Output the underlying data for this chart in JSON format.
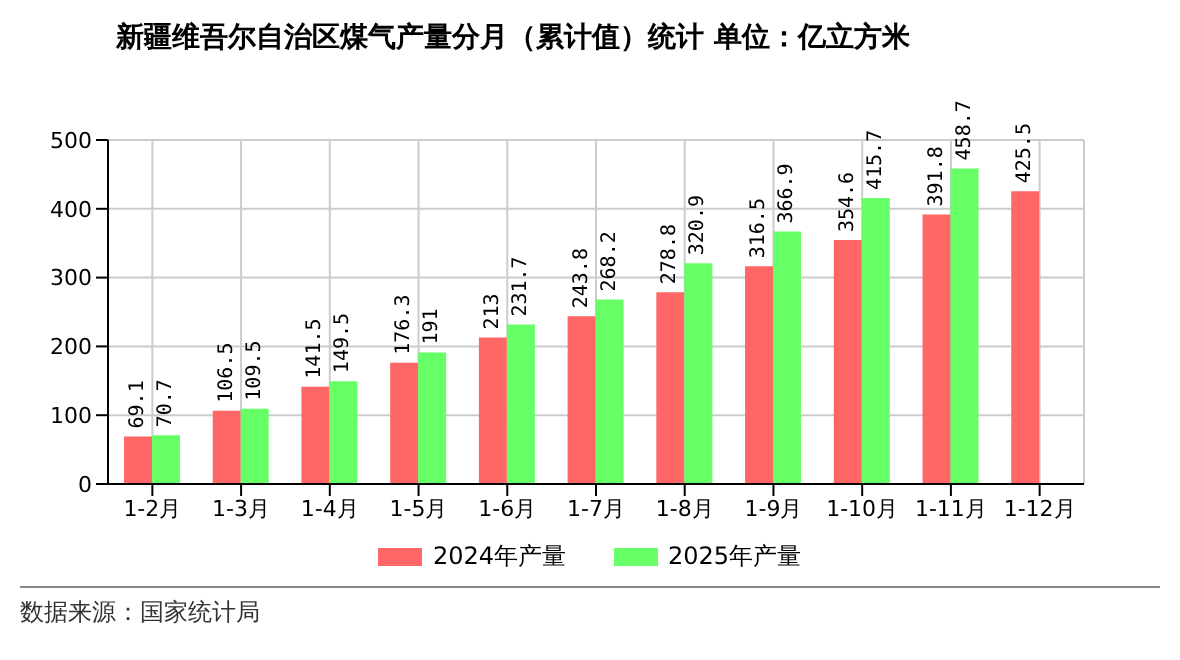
{
  "chart_data": {
    "type": "bar",
    "title": "新疆维吾尔自治区煤气产量分月（累计值）统计  单位：亿立方米",
    "categories": [
      "1-2月",
      "1-3月",
      "1-4月",
      "1-5月",
      "1-6月",
      "1-7月",
      "1-8月",
      "1-9月",
      "1-10月",
      "1-11月",
      "1-12月"
    ],
    "series": [
      {
        "name": "2024年产量",
        "color": "#ff6666",
        "values": [
          69.1,
          106.5,
          141.5,
          176.3,
          213,
          243.8,
          278.8,
          316.5,
          354.6,
          391.8,
          425.5
        ]
      },
      {
        "name": "2025年产量",
        "color": "#66ff66",
        "values": [
          70.7,
          109.5,
          149.5,
          191,
          231.7,
          268.2,
          320.9,
          366.9,
          415.7,
          458.7,
          null
        ]
      }
    ],
    "ylim": [
      0,
      500
    ],
    "yticks": [
      0,
      100,
      200,
      300,
      400,
      500
    ],
    "grid": true,
    "legend": "bottom",
    "data_labels": true,
    "annotations": [
      "数据来源：国家统计局"
    ]
  }
}
